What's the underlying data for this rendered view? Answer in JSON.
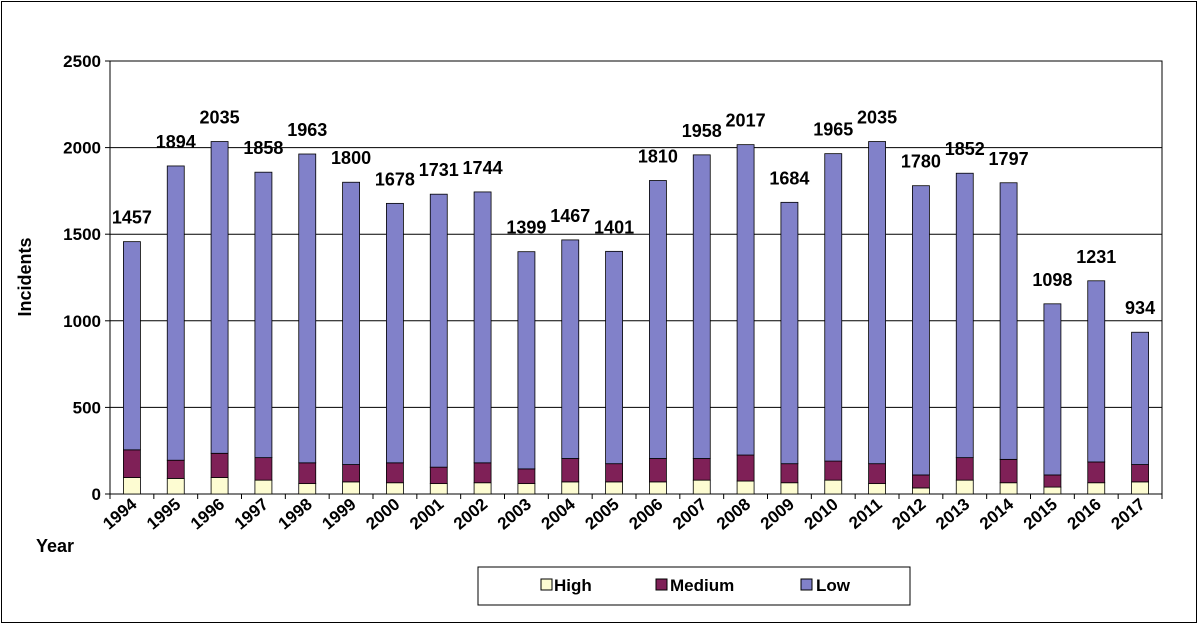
{
  "chart_data": {
    "type": "bar",
    "stacked": true,
    "title": "",
    "xlabel": "Year",
    "ylabel": "Incidents",
    "ylim": [
      0,
      2500
    ],
    "yticks": [
      0,
      500,
      1000,
      1500,
      2000,
      2500
    ],
    "grid": true,
    "legend_position": "bottom",
    "categories": [
      "1994",
      "1995",
      "1996",
      "1997",
      "1998",
      "1999",
      "2000",
      "2001",
      "2002",
      "2003",
      "2004",
      "2005",
      "2006",
      "2007",
      "2008",
      "2009",
      "2010",
      "2011",
      "2012",
      "2013",
      "2014",
      "2015",
      "2016",
      "2017"
    ],
    "totals": [
      1457,
      1894,
      2035,
      1858,
      1963,
      1800,
      1678,
      1731,
      1744,
      1399,
      1467,
      1401,
      1810,
      1958,
      2017,
      1684,
      1965,
      2035,
      1780,
      1852,
      1797,
      1098,
      1231,
      934
    ],
    "series": [
      {
        "name": "High",
        "color": "#fdfcd2",
        "values": [
          95,
          90,
          95,
          80,
          60,
          70,
          65,
          60,
          65,
          60,
          70,
          70,
          70,
          80,
          75,
          65,
          80,
          60,
          35,
          80,
          65,
          40,
          65,
          70
        ]
      },
      {
        "name": "Medium",
        "color": "#7f2057",
        "values": [
          160,
          105,
          140,
          130,
          120,
          100,
          115,
          95,
          115,
          85,
          135,
          105,
          135,
          125,
          150,
          110,
          110,
          115,
          75,
          130,
          135,
          70,
          120,
          100
        ]
      },
      {
        "name": "Low",
        "color": "#8181c9",
        "values": [
          1202,
          1699,
          1800,
          1648,
          1783,
          1630,
          1498,
          1576,
          1564,
          1254,
          1262,
          1226,
          1605,
          1753,
          1792,
          1509,
          1775,
          1860,
          1670,
          1642,
          1597,
          988,
          1046,
          764
        ]
      }
    ]
  }
}
